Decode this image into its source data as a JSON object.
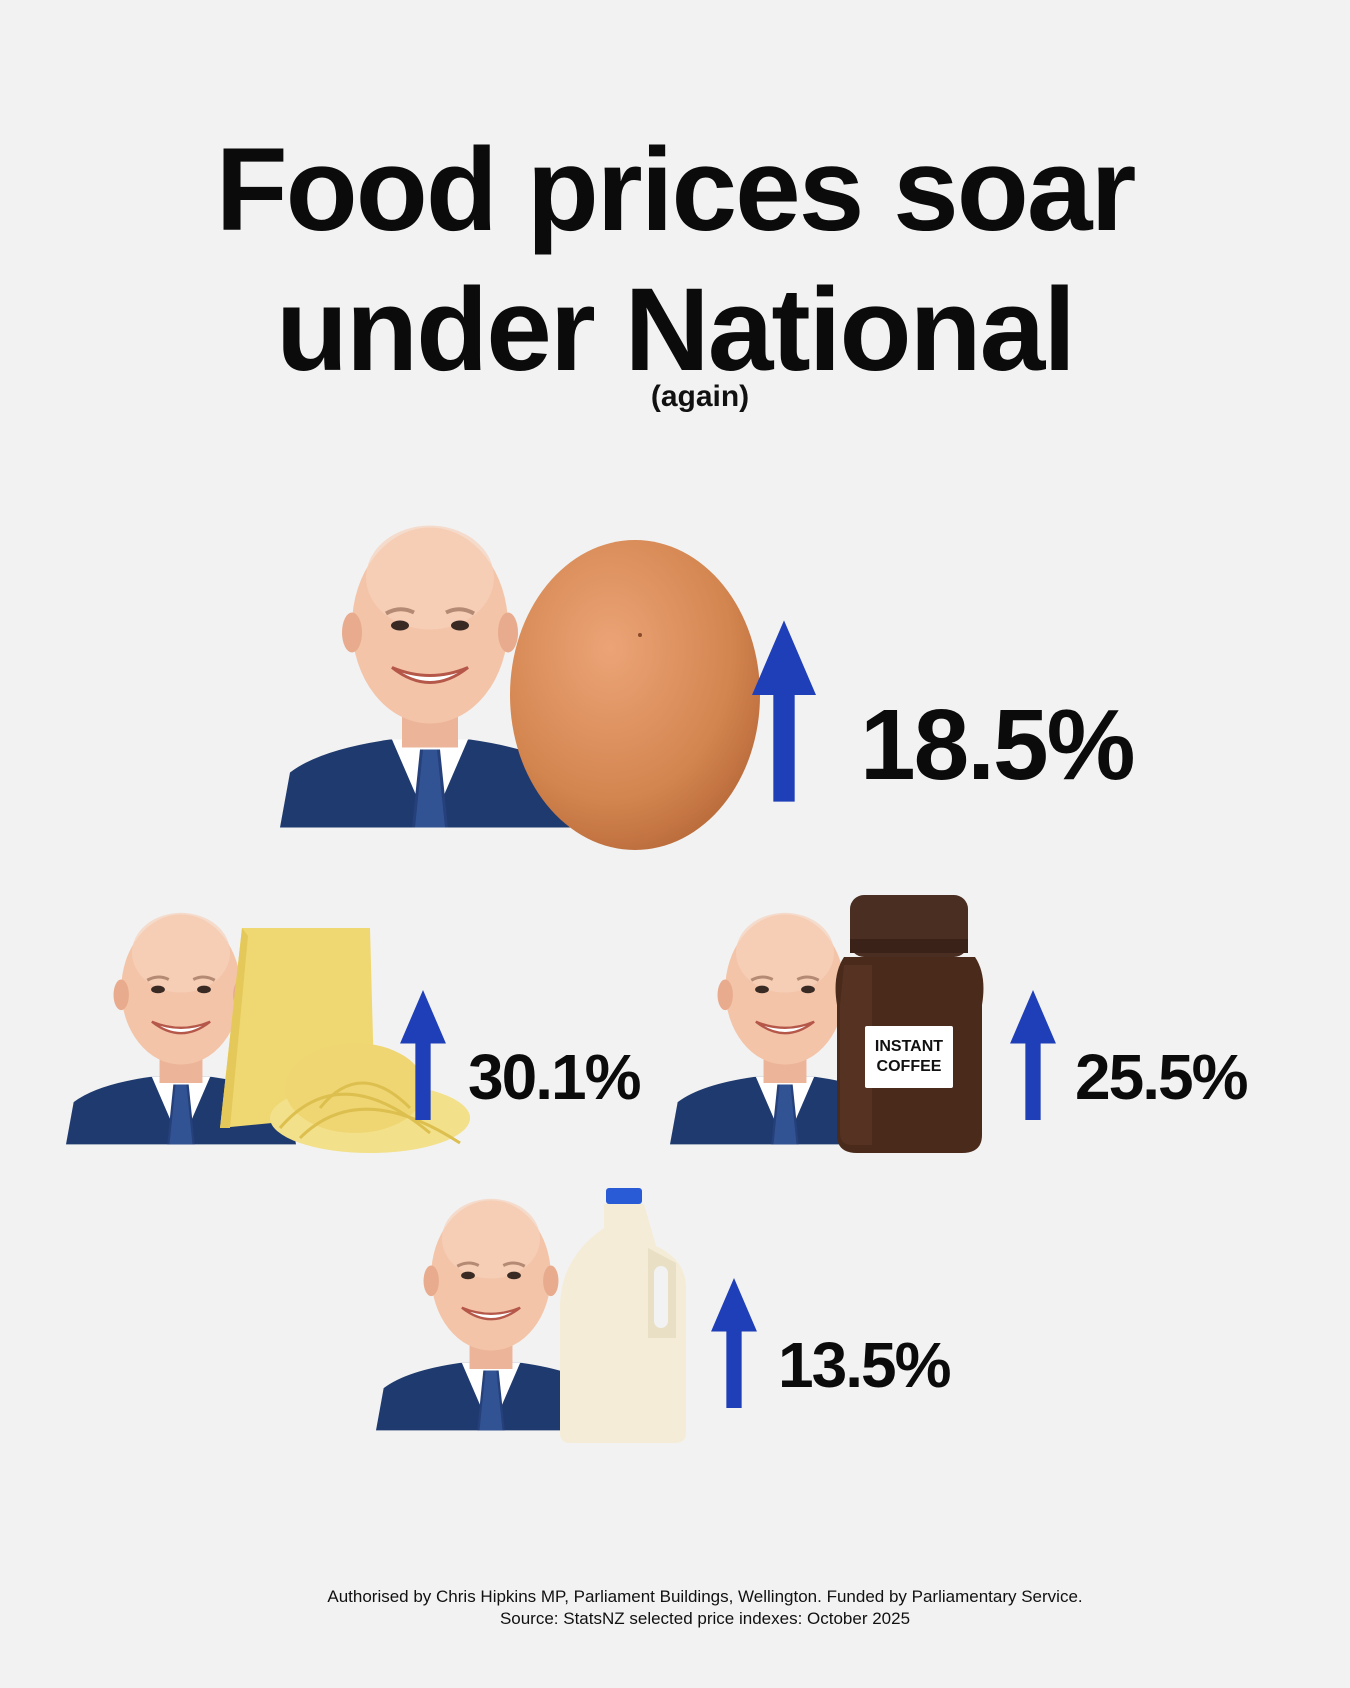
{
  "headline": {
    "line1": "Food prices soar",
    "line2": "under National",
    "aside": "(again)"
  },
  "items": [
    {
      "food": "eggs",
      "change_label": "18.5%",
      "direction": "up"
    },
    {
      "food": "cheese",
      "change_label": "30.1%",
      "direction": "up"
    },
    {
      "food": "instant coffee",
      "change_label": "25.5%",
      "direction": "up",
      "jar_label_1": "INSTANT",
      "jar_label_2": "COFFEE"
    },
    {
      "food": "milk",
      "change_label": "13.5%",
      "direction": "up"
    }
  ],
  "footer": {
    "authorisation": "Authorised by Chris Hipkins MP, Parliament Buildings, Wellington. Funded by Parliamentary Service.",
    "source": "Source: StatsNZ selected price indexes: October 2025"
  },
  "colors": {
    "background": "#f2f2f2",
    "arrow": "#1f3fb8",
    "suit": "#1f3a6e",
    "skin": "#f1c1a6",
    "egg": "#d58a55",
    "cheese": "#efd872",
    "coffee": "#3c2418",
    "milk": "#f4ecd6",
    "milk_cap": "#2a5bd7"
  }
}
